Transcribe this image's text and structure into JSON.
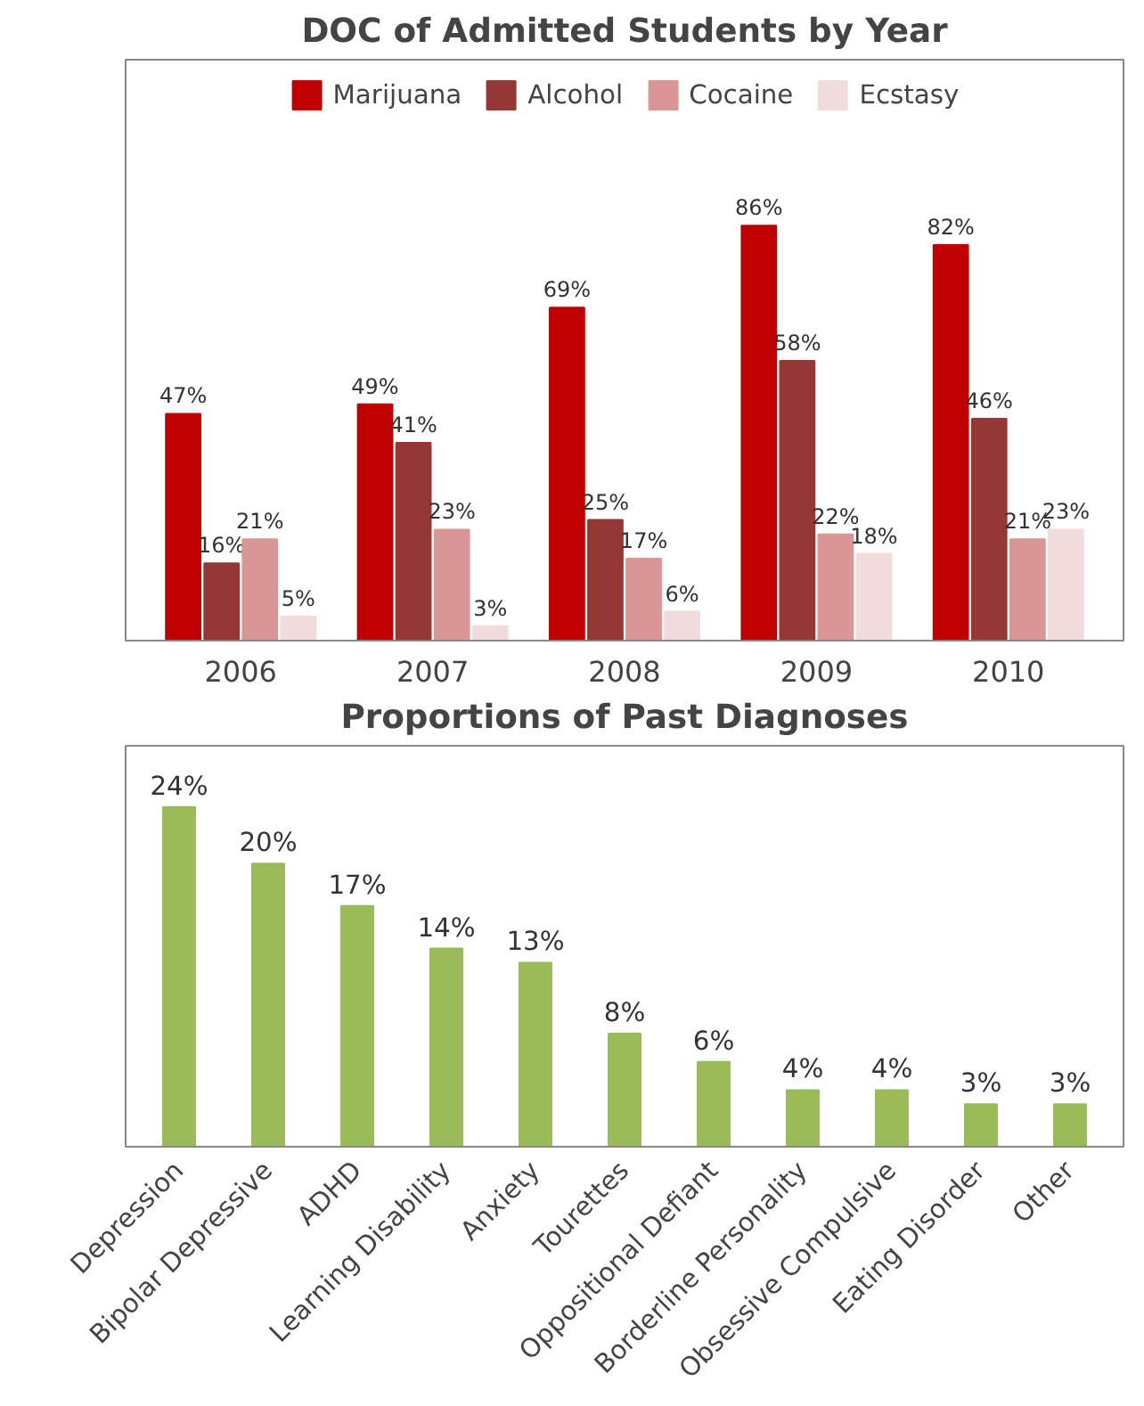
{
  "chart_data": [
    {
      "type": "bar",
      "title": "DOC of Admitted Students by Year",
      "categories": [
        "2006",
        "2007",
        "2008",
        "2009",
        "2010"
      ],
      "legend": "top",
      "grid": false,
      "series": [
        {
          "name": "Marijuana",
          "color": "#c00000",
          "values": [
            47,
            49,
            69,
            86,
            82
          ],
          "value_labels": [
            "47%",
            "49%",
            "69%",
            "86%",
            "82%"
          ]
        },
        {
          "name": "Alcohol",
          "color": "#953735",
          "values": [
            16,
            41,
            25,
            58,
            46
          ],
          "value_labels": [
            "16%",
            "41%",
            "25%",
            "58%",
            "46%"
          ]
        },
        {
          "name": "Cocaine",
          "color": "#d99694",
          "values": [
            21,
            23,
            17,
            22,
            21
          ],
          "value_labels": [
            "21%",
            "23%",
            "17%",
            "22%",
            "21%"
          ]
        },
        {
          "name": "Ecstasy",
          "color": "#f2dcdb",
          "values": [
            5,
            3,
            6,
            18,
            23
          ],
          "value_labels": [
            "5%",
            "3%",
            "6%",
            "18%",
            "23%"
          ]
        }
      ]
    },
    {
      "type": "bar",
      "title": "Proportions of Past Diagnoses",
      "categories": [
        "Depression",
        "Bipolar Depressive",
        "ADHD",
        "Learning Disability",
        "Anxiety",
        "Tourettes",
        "Oppositional Defiant",
        "Borderline Personality",
        "Obsessive Compulsive",
        "Eating Disorder",
        "Other"
      ],
      "grid": false,
      "legend": false,
      "series": [
        {
          "color": "#9bbb59",
          "values": [
            24,
            20,
            17,
            14,
            13,
            8,
            6,
            4,
            4,
            3,
            3
          ],
          "value_labels": [
            "24%",
            "20%",
            "17%",
            "14%",
            "13%",
            "8%",
            "6%",
            "4%",
            "4%",
            "3%",
            "3%"
          ]
        }
      ]
    }
  ]
}
